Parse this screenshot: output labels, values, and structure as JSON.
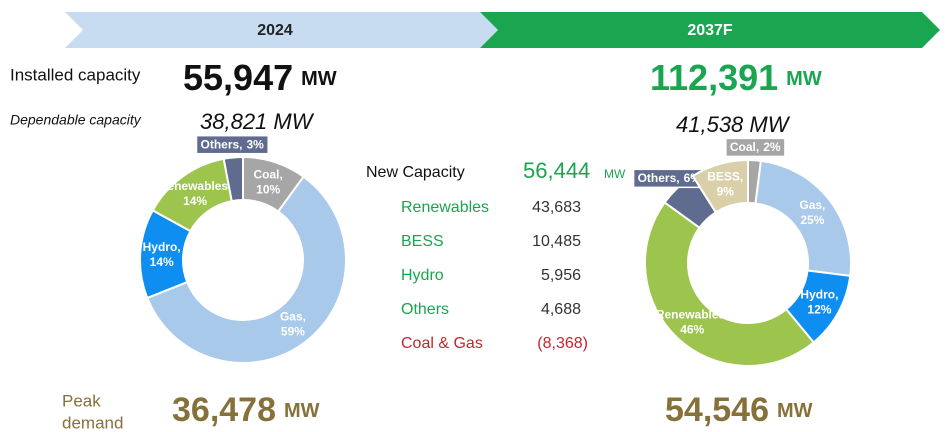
{
  "header": {
    "left": "2024",
    "right": "2037F"
  },
  "installed_capacity": {
    "label": "Installed capacity",
    "values": [
      "55,947",
      "112,391"
    ],
    "unit": "MW"
  },
  "dependable_capacity": {
    "label": "Dependable capacity",
    "values": [
      "38,821 MW",
      "41,538 MW"
    ]
  },
  "new_capacity": {
    "label": "New Capacity",
    "value": "56,444",
    "unit": "MW",
    "rows": [
      {
        "label": "Renewables",
        "value": "43,683"
      },
      {
        "label": "BESS",
        "value": "10,485"
      },
      {
        "label": "Hydro",
        "value": "5,956"
      },
      {
        "label": "Others",
        "value": "4,688"
      },
      {
        "label": "Coal & Gas",
        "value": "(8,368)"
      }
    ]
  },
  "peak_demand": {
    "label_lines": [
      "Peak",
      "demand"
    ],
    "values": [
      "36,478",
      "54,546"
    ],
    "unit": "MW"
  },
  "chart_data": [
    {
      "type": "pie",
      "categories": [
        "Coal,",
        "Gas,",
        "Hydro,",
        "Renewables,",
        "Others,"
      ],
      "values": [
        10,
        59,
        14,
        14,
        3
      ],
      "value_labels": [
        "10%",
        "59%",
        "14%",
        "14%",
        "3%"
      ],
      "colors": [
        "#a6a6a6",
        "#a9c9ea",
        "#0d8ef0",
        "#9dc44d",
        "#5f6b8f"
      ]
    },
    {
      "type": "pie",
      "categories": [
        "Coal,",
        "Gas,",
        "Hydro,",
        "Renewables,",
        "Others,",
        "BESS,"
      ],
      "values": [
        2,
        25,
        12,
        46,
        6,
        9
      ],
      "value_labels": [
        "2%",
        "25%",
        "12%",
        "46%",
        "6%",
        "9%"
      ],
      "colors": [
        "#a6a6a6",
        "#a9c9ea",
        "#0d8ef0",
        "#9dc44d",
        "#5f6b8f",
        "#d9cfa8"
      ]
    }
  ]
}
